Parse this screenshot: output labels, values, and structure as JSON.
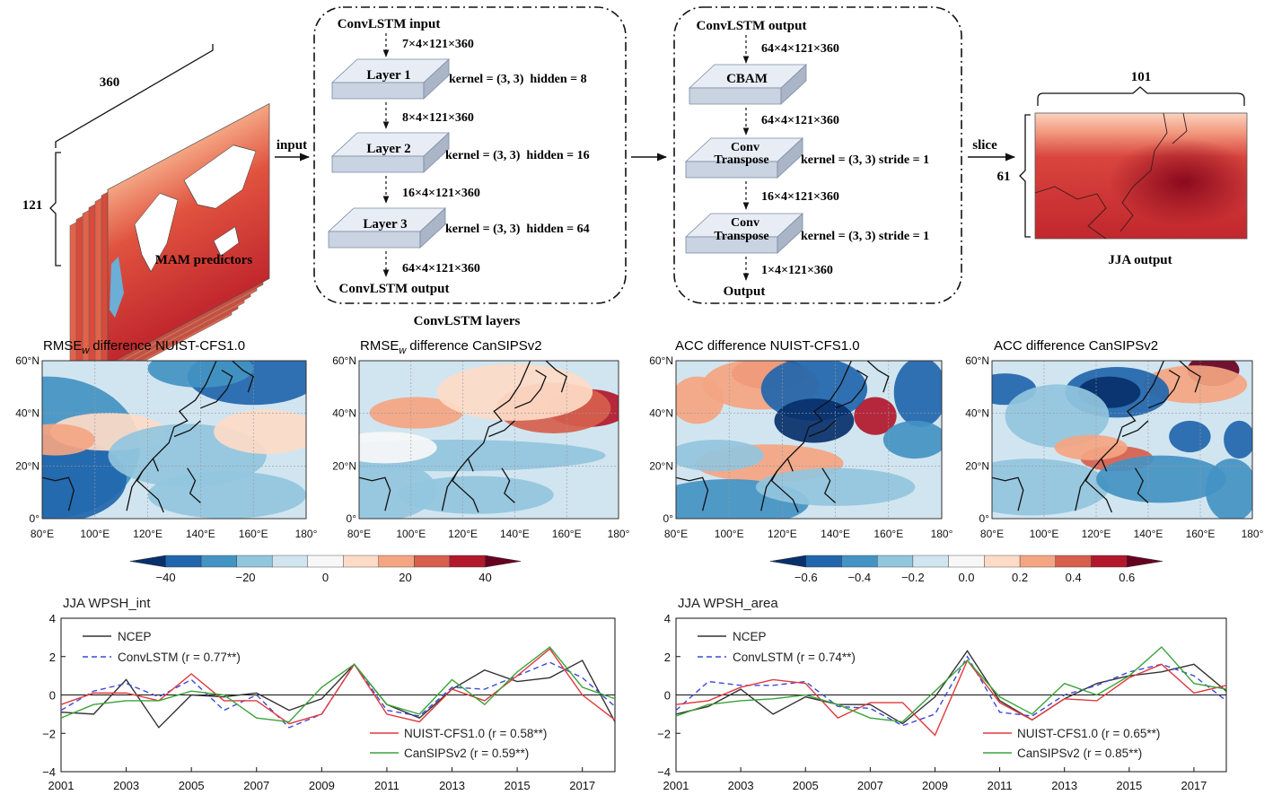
{
  "schematic": {
    "predictor_label": "MAM predictors",
    "dim_width": "360",
    "dim_height": "121",
    "input_arrow": "input",
    "group1_label": "ConvLSTM layers",
    "g1": {
      "input_title": "ConvLSTM input",
      "shape_in": "7×4×121×360",
      "layers": [
        {
          "name": "Layer 1",
          "params": "kernel = (3, 3)  hidden = 8",
          "shape_out": "8×4×121×360"
        },
        {
          "name": "Layer 2",
          "params": "kernel = (3, 3)  hidden = 16",
          "shape_out": "16×4×121×360"
        },
        {
          "name": "Layer 3",
          "params": "kernel = (3, 3)  hidden = 64",
          "shape_out": "64×4×121×360"
        }
      ],
      "output_title": "ConvLSTM output"
    },
    "g2": {
      "input_title": "ConvLSTM output",
      "shape_in": "64×4×121×360",
      "cbam": "CBAM",
      "shape_after_cbam": "64×4×121×360",
      "conv1_line1": "Conv",
      "conv1_line2": "Transpose",
      "conv1_params": "kernel = (3, 3) stride = 1",
      "shape_after_conv1": "16×4×121×360",
      "conv2_line1": "Conv",
      "conv2_line2": "Transpose",
      "conv2_params": "kernel = (3, 3) stride = 1",
      "shape_out": "1×4×121×360",
      "output_title": "Output"
    },
    "slice_label": "slice",
    "out_width": "101",
    "out_height": "61",
    "output_label": "JJA output"
  },
  "maps": {
    "titles": [
      "RMSE",
      "difference NUIST-CFS1.0",
      "RMSE",
      "difference CanSIPSv2",
      "ACC difference NUIST-CFS1.0",
      "ACC difference CanSIPSv2"
    ],
    "subscript": "w",
    "lat_labels": [
      "60°N",
      "40°N",
      "20°N",
      "0°"
    ],
    "lon_labels": [
      "80°E",
      "100°E",
      "120°E",
      "140°E",
      "160°E",
      "180°"
    ]
  },
  "colorbars": {
    "rmse_ticks": [
      "−40",
      "−20",
      "0",
      "20",
      "40"
    ],
    "acc_ticks": [
      "−0.6",
      "−0.4",
      "−0.2",
      "0.0",
      "0.2",
      "0.4",
      "0.6"
    ],
    "colors": [
      "#08306b",
      "#2166ac",
      "#4393c3",
      "#92c5de",
      "#d1e5f0",
      "#f7f7f7",
      "#fddbc7",
      "#f4a582",
      "#d6604d",
      "#b2182b",
      "#67001f"
    ]
  },
  "chart_data": [
    {
      "type": "line",
      "title": "JJA WPSH_int",
      "x": [
        2001,
        2002,
        2003,
        2004,
        2005,
        2006,
        2007,
        2008,
        2009,
        2010,
        2011,
        2012,
        2013,
        2014,
        2015,
        2016,
        2017,
        2018
      ],
      "x_tick_labels": [
        "2001",
        "2003",
        "2005",
        "2007",
        "2009",
        "2011",
        "2013",
        "2015",
        "2017"
      ],
      "y_tick_labels": [
        "4",
        "2",
        "0",
        "−2",
        "−4"
      ],
      "ylim": [
        -4,
        4
      ],
      "xlim": [
        2001,
        2018
      ],
      "series": [
        {
          "name": "NCEP",
          "color": "#333333",
          "dash": "none",
          "values": [
            -0.9,
            -1.0,
            0.8,
            -1.7,
            0.0,
            -0.1,
            0.1,
            -0.8,
            -0.2,
            1.6,
            -0.5,
            -1.2,
            0.3,
            1.3,
            0.7,
            0.9,
            1.8,
            -1.4
          ]
        },
        {
          "name": "ConvLSTM (r = 0.77**)",
          "color": "#3b4ad8",
          "dash": "6,4",
          "values": [
            -0.8,
            0.2,
            0.6,
            -0.1,
            0.8,
            -0.8,
            0.0,
            -1.7,
            -1.0,
            1.6,
            -0.8,
            -1.1,
            0.4,
            0.3,
            1.0,
            1.7,
            0.9,
            -0.6
          ]
        },
        {
          "name": "NUIST-CFS1.0 (r = 0.58**)",
          "color": "#e0393e",
          "dash": "none",
          "values": [
            -0.5,
            0.1,
            0.1,
            -0.3,
            1.1,
            -0.3,
            -0.3,
            -1.5,
            -1.0,
            1.6,
            -1.0,
            -1.4,
            0.3,
            -0.3,
            1.0,
            2.4,
            0.0,
            -1.3
          ]
        },
        {
          "name": "CanSIPSv2 (r = 0.59**)",
          "color": "#3aa33a",
          "dash": "none",
          "values": [
            -1.2,
            -0.5,
            -0.3,
            -0.3,
            0.2,
            0.0,
            -1.2,
            -1.4,
            0.4,
            1.6,
            -0.5,
            -1.0,
            0.8,
            -0.5,
            1.2,
            2.5,
            0.4,
            -0.2
          ]
        }
      ]
    },
    {
      "type": "line",
      "title": "JJA WPSH_area",
      "x": [
        2001,
        2002,
        2003,
        2004,
        2005,
        2006,
        2007,
        2008,
        2009,
        2010,
        2011,
        2012,
        2013,
        2014,
        2015,
        2016,
        2017,
        2018
      ],
      "x_tick_labels": [
        "2001",
        "2003",
        "2005",
        "2007",
        "2009",
        "2011",
        "2013",
        "2015",
        "2017"
      ],
      "y_tick_labels": [
        "4",
        "2",
        "0",
        "−2",
        "−4"
      ],
      "ylim": [
        -4,
        4
      ],
      "xlim": [
        2001,
        2018
      ],
      "series": [
        {
          "name": "NCEP",
          "color": "#333333",
          "dash": "none",
          "values": [
            -1.0,
            -0.6,
            0.3,
            -1.0,
            -0.1,
            -0.5,
            -0.5,
            -1.5,
            -0.1,
            2.3,
            -0.3,
            -1.3,
            -0.2,
            0.6,
            1.0,
            1.2,
            1.6,
            0.2
          ]
        },
        {
          "name": "ConvLSTM (r = 0.74**)",
          "color": "#3b4ad8",
          "dash": "6,4",
          "values": [
            -0.8,
            0.7,
            0.5,
            0.5,
            0.7,
            -0.6,
            -0.7,
            -1.6,
            -1.0,
            2.0,
            -0.9,
            -1.1,
            0.0,
            0.5,
            1.2,
            1.6,
            1.0,
            -0.3
          ]
        },
        {
          "name": "NUIST-CFS1.0 (r = 0.65**)",
          "color": "#e0393e",
          "dash": "none",
          "values": [
            -0.5,
            -0.3,
            0.4,
            0.8,
            0.6,
            -1.2,
            -0.4,
            -0.4,
            -2.1,
            1.8,
            -0.4,
            -1.3,
            -0.2,
            -0.3,
            0.9,
            1.6,
            0.1,
            0.5
          ]
        },
        {
          "name": "CanSIPSv2 (r = 0.85**)",
          "color": "#3aa33a",
          "dash": "none",
          "values": [
            -1.1,
            -0.5,
            -0.3,
            -0.2,
            0.0,
            -0.5,
            -1.2,
            -1.4,
            0.2,
            1.8,
            -0.1,
            -1.0,
            0.6,
            0.0,
            1.0,
            2.5,
            0.6,
            0.3
          ]
        }
      ]
    }
  ]
}
